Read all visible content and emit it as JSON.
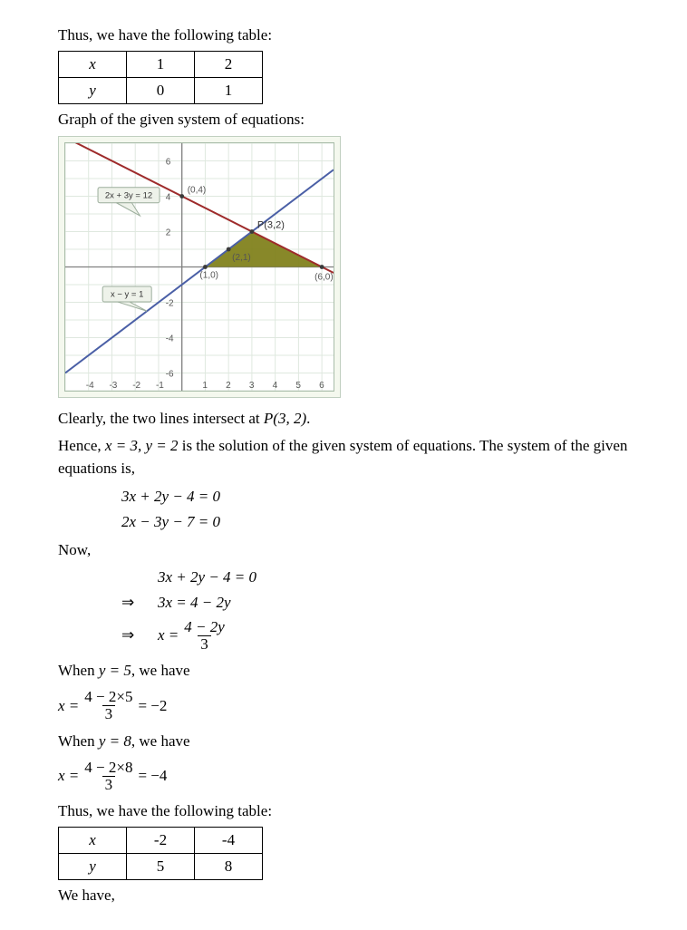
{
  "intro1": "Thus, we have the following table:",
  "table1": {
    "r1": [
      "x",
      "1",
      "2"
    ],
    "r2": [
      "y",
      "0",
      "1"
    ]
  },
  "para_graph": "Graph of the given system of equations:",
  "graph": {
    "bg": "#f4f8ee",
    "panel_bg": "#ffffff",
    "grid_color": "#dfe8df",
    "axis_color": "#808080",
    "line1_color": "#9e2b2b",
    "line2_color": "#4a5fa6",
    "fill_color": "#7e7e17",
    "box_bg": "#eef2ea",
    "box_border": "#9cae9c",
    "eq1_label": "2x + 3y = 12",
    "eq2_label": "x − y = 1",
    "pt_intersect": "P(3,2)",
    "other_points": [
      "(0,4)",
      "(2,1)",
      "(1,0)",
      "(6,0)"
    ],
    "x_ticks": [
      "-4",
      "-3",
      "-2",
      "-1",
      "1",
      "2",
      "3",
      "4",
      "5",
      "6"
    ],
    "y_ticks": [
      "-6",
      "-4",
      "-2",
      "2",
      "4",
      "6"
    ],
    "x_range": [
      -5,
      6.5
    ],
    "y_range": [
      -7,
      7
    ]
  },
  "clearly": {
    "pre": "Clearly, the two lines intersect at ",
    "pt": "P(3, 2)",
    "post": "."
  },
  "hence": {
    "pre": "Hence, ",
    "xy": "x = 3,  y = 2",
    "post": " is the solution of the given system of equations. The system of the given equations is,"
  },
  "sys1": "3x + 2y − 4 = 0",
  "sys2": "2x − 3y − 7 = 0",
  "now": "Now,",
  "step1": "3x + 2y − 4 = 0",
  "step2": "3x = 4 − 2y",
  "step3": {
    "lhs": "x =",
    "num": "4 − 2y",
    "den": "3"
  },
  "wheny5": {
    "pre": "When ",
    "y": "y = 5",
    "post": ", we have"
  },
  "eval5": {
    "lhs": "x =",
    "num": "4 − 2×5",
    "den": "3",
    "res": "= −2"
  },
  "wheny8": {
    "pre": "When ",
    "y": "y = 8",
    "post": ", we have"
  },
  "eval8": {
    "lhs": "x =",
    "num": "4 − 2×8",
    "den": "3",
    "res": "= −4"
  },
  "intro2": "Thus, we have the following table:",
  "table2": {
    "r1": [
      "x",
      "-2",
      "-4"
    ],
    "r2": [
      "y",
      "5",
      "8"
    ]
  },
  "wehave": "We have,"
}
